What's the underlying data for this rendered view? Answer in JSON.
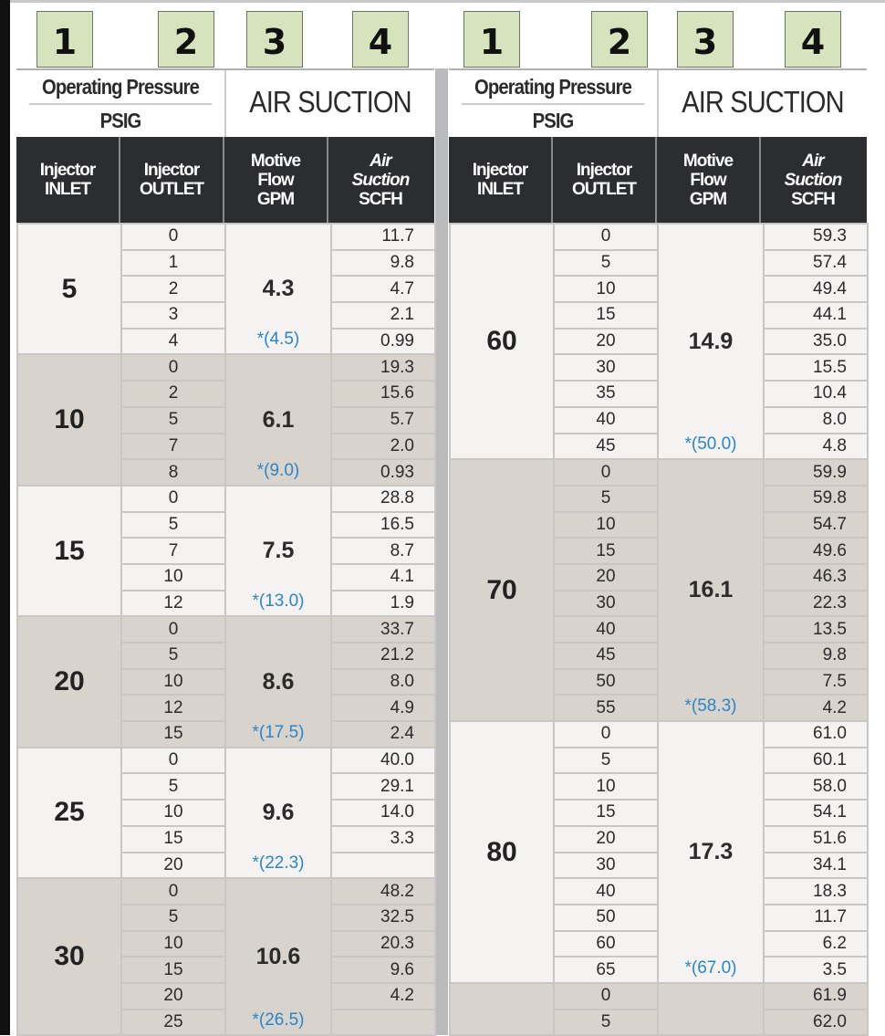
{
  "column_markers": [
    "1",
    "2",
    "3",
    "4"
  ],
  "header": {
    "operating_pressure": "Operating Pressure",
    "psig": "PSIG",
    "air_suction_title": "AIR SUCTION",
    "columns": [
      {
        "line1": "Injector",
        "line2": "INLET"
      },
      {
        "line1": "Injector",
        "line2": "OUTLET"
      },
      {
        "line1": "Motive",
        "line2": "Flow",
        "line3": "GPM"
      },
      {
        "line1": "Air",
        "line2": "Suction",
        "line3": "SCFH"
      }
    ]
  },
  "colors": {
    "marker_box": "#d6e3bc",
    "header_bg": "#2c2d31",
    "group_light": "#f4f3f2",
    "group_dark": "#d8d3cd",
    "max_flow_text": "#2a86c8"
  },
  "left_table": [
    {
      "inlet": "5",
      "flow": "4.3",
      "max": "*(4.5)",
      "outlet": [
        "0",
        "1",
        "2",
        "3",
        "4"
      ],
      "air": [
        "11.7",
        "9.8",
        "4.7",
        "2.1",
        "0.99"
      ]
    },
    {
      "inlet": "10",
      "flow": "6.1",
      "max": "*(9.0)",
      "outlet": [
        "0",
        "2",
        "5",
        "7",
        "8"
      ],
      "air": [
        "19.3",
        "15.6",
        "5.7",
        "2.0",
        "0.93"
      ]
    },
    {
      "inlet": "15",
      "flow": "7.5",
      "max": "*(13.0)",
      "outlet": [
        "0",
        "5",
        "7",
        "10",
        "12"
      ],
      "air": [
        "28.8",
        "16.5",
        "8.7",
        "4.1",
        "1.9"
      ]
    },
    {
      "inlet": "20",
      "flow": "8.6",
      "max": "*(17.5)",
      "outlet": [
        "0",
        "5",
        "10",
        "12",
        "15"
      ],
      "air": [
        "33.7",
        "21.2",
        "8.0",
        "4.9",
        "2.4"
      ]
    },
    {
      "inlet": "25",
      "flow": "9.6",
      "max": "*(22.3)",
      "outlet": [
        "0",
        "5",
        "10",
        "15",
        "20"
      ],
      "air": [
        "40.0",
        "29.1",
        "14.0",
        "3.3",
        ""
      ]
    },
    {
      "inlet": "30",
      "flow": "10.6",
      "max": "*(26.5)",
      "outlet": [
        "0",
        "5",
        "10",
        "15",
        "20",
        "25"
      ],
      "air": [
        "48.2",
        "32.5",
        "20.3",
        "9.6",
        "4.2",
        ""
      ]
    }
  ],
  "right_table": [
    {
      "inlet": "60",
      "flow": "14.9",
      "max": "*(50.0)",
      "outlet": [
        "0",
        "5",
        "10",
        "15",
        "20",
        "30",
        "35",
        "40",
        "45"
      ],
      "air": [
        "59.3",
        "57.4",
        "49.4",
        "44.1",
        "35.0",
        "15.5",
        "10.4",
        "8.0",
        "4.8"
      ]
    },
    {
      "inlet": "70",
      "flow": "16.1",
      "max": "*(58.3)",
      "outlet": [
        "0",
        "5",
        "10",
        "15",
        "20",
        "30",
        "40",
        "45",
        "50",
        "55"
      ],
      "air": [
        "59.9",
        "59.8",
        "54.7",
        "49.6",
        "46.3",
        "22.3",
        "13.5",
        "9.8",
        "7.5",
        "4.2"
      ]
    },
    {
      "inlet": "80",
      "flow": "17.3",
      "max": "*(67.0)",
      "outlet": [
        "0",
        "5",
        "10",
        "15",
        "20",
        "30",
        "40",
        "50",
        "60",
        "65"
      ],
      "air": [
        "61.0",
        "60.1",
        "58.0",
        "54.1",
        "51.6",
        "34.1",
        "18.3",
        "11.7",
        "6.2",
        "3.5"
      ]
    },
    {
      "inlet": "",
      "flow": "",
      "max": "",
      "outlet": [
        "0",
        "5"
      ],
      "air": [
        "61.9",
        "62.0"
      ]
    }
  ]
}
